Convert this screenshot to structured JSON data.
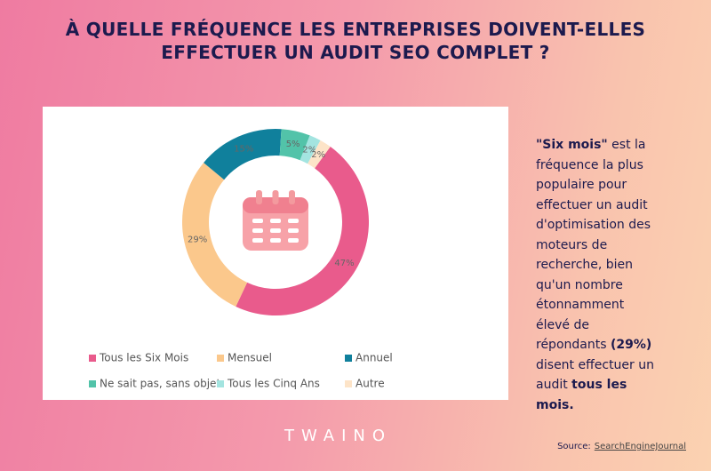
{
  "chart_data": {
    "type": "donut",
    "title": [
      "À QUELLE FRÉQUENCE LES ENTREPRISES DOIVENT-ELLES",
      "EFFECTUER UN AUDIT SEO COMPLET ?"
    ],
    "categories": [
      "Tous les Six Mois",
      "Mensuel",
      "Annuel",
      "Ne sait pas, sans objet",
      "Tous les Cinq Ans",
      "Autre"
    ],
    "values": [
      47,
      29,
      15,
      5,
      2,
      2
    ],
    "value_labels": [
      "47%",
      "29%",
      "15%",
      "5%",
      "2%",
      "2%"
    ],
    "colors": [
      "#e95b8c",
      "#fbc88c",
      "#10809c",
      "#52c3a9",
      "#a3e4e0",
      "#fde4c8"
    ]
  },
  "note": [
    {
      "text": "\"Six mois\"",
      "bold": true
    },
    {
      "text": " est la fréquence la plus populaire pour effectuer un audit d'optimisation des moteurs de recherche, bien qu'un nombre étonnamment élevé de répondants ",
      "bold": false
    },
    {
      "text": "(29%)",
      "bold": true
    },
    {
      "text": " disent effectuer un audit ",
      "bold": false
    },
    {
      "text": "tous les mois.",
      "bold": true
    }
  ],
  "brand": "TWAINO",
  "source": {
    "label": "Source:",
    "name": "SearchEngineJournal"
  }
}
